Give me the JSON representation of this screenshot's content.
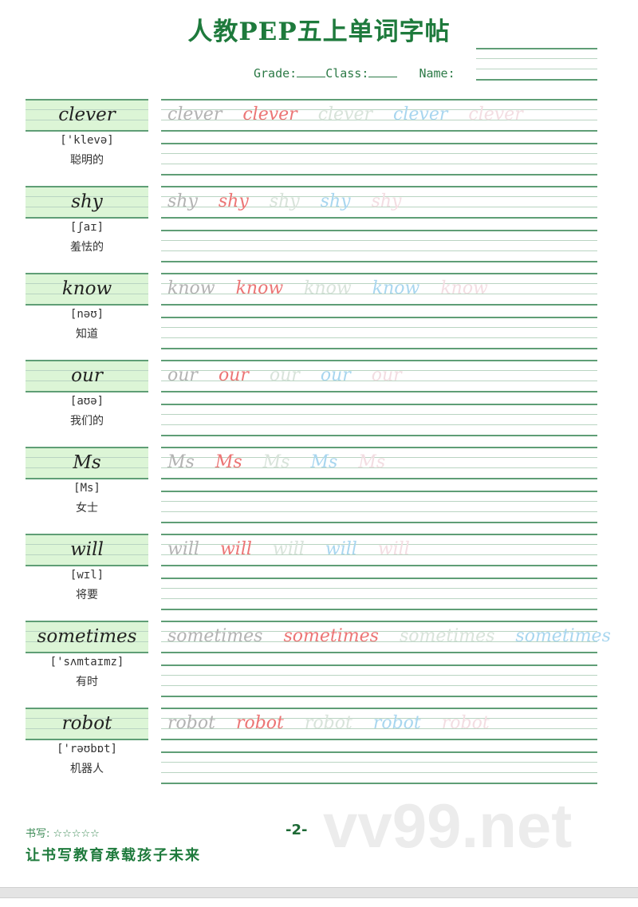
{
  "header": {
    "title": "人教PEP五上单词字帖",
    "grade_label": "Grade:",
    "class_label": "Class:",
    "name_label": "Name:"
  },
  "practice_colors": [
    "#b3b3b3",
    "#ec7575",
    "#d8e3da",
    "#a8d6ef",
    "#f3dde2"
  ],
  "words": [
    {
      "word": "clever",
      "phonetic": "['klevə]",
      "meaning": "聪明的",
      "repeats": 5
    },
    {
      "word": "shy",
      "phonetic": "[ʃaɪ]",
      "meaning": "羞怯的",
      "repeats": 5
    },
    {
      "word": "know",
      "phonetic": "[nəʊ]",
      "meaning": "知道",
      "repeats": 5
    },
    {
      "word": "our",
      "phonetic": "[aʊə]",
      "meaning": "我们的",
      "repeats": 5
    },
    {
      "word": "Ms",
      "phonetic": "[Ms]",
      "meaning": "女士",
      "repeats": 5
    },
    {
      "word": "will",
      "phonetic": "[wɪl]",
      "meaning": "将要",
      "repeats": 5
    },
    {
      "word": "sometimes",
      "phonetic": "['sʌmtaɪmz]",
      "meaning": "有时",
      "repeats": 4
    },
    {
      "word": "robot",
      "phonetic": "['rəʊbɒt]",
      "meaning": "机器人",
      "repeats": 5
    }
  ],
  "footer": {
    "rating_label": "书写:",
    "rating_stars": "☆☆☆☆☆",
    "slogan": "让书写教育承载孩子未来",
    "page_number": "-2-"
  },
  "watermark": "vv99.net"
}
